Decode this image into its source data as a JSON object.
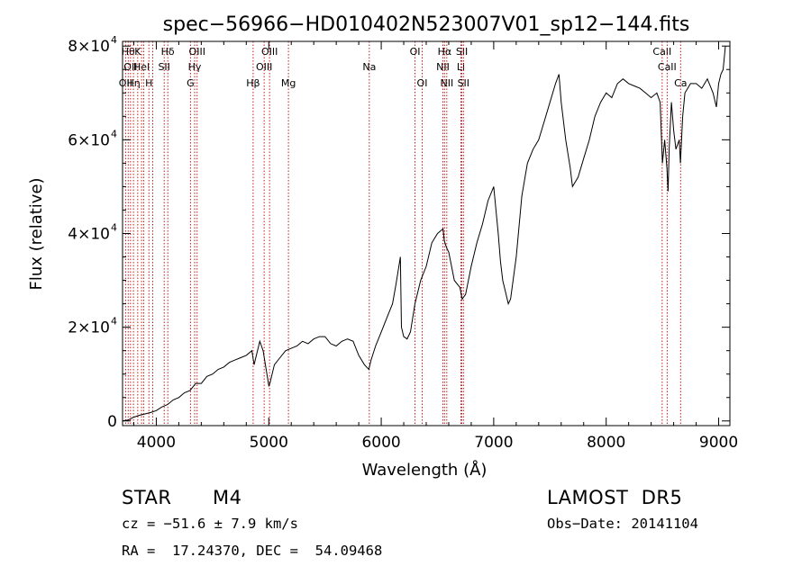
{
  "chart_data": {
    "type": "line",
    "title": "spec−56966−HD010402N523007V01_sp12−144.fits",
    "xlabel": "Wavelength (Å)",
    "ylabel": "Flux (relative)",
    "xlim": [
      3700,
      9100
    ],
    "ylim": [
      -1000,
      81000
    ],
    "xticks": [
      4000,
      5000,
      6000,
      7000,
      8000,
      9000
    ],
    "xtick_labels": [
      "4000",
      "5000",
      "6000",
      "7000",
      "8000",
      "9000"
    ],
    "yticks": [
      {
        "value": 0,
        "mantissa": "0",
        "exponent": ""
      },
      {
        "value": 20000,
        "mantissa": "2×10",
        "exponent": "4"
      },
      {
        "value": 40000,
        "mantissa": "4×10",
        "exponent": "4"
      },
      {
        "value": 60000,
        "mantissa": "6×10",
        "exponent": "4"
      },
      {
        "value": 80000,
        "mantissa": "8×10",
        "exponent": "4"
      }
    ],
    "grid": false,
    "series": [
      {
        "x": [
          3700,
          3750,
          3800,
          3850,
          3900,
          3950,
          4000,
          4050,
          4100,
          4150,
          4200,
          4250,
          4300,
          4350,
          4400,
          4450,
          4500,
          4550,
          4600,
          4650,
          4700,
          4750,
          4800,
          4850,
          4870,
          4890,
          4920,
          4950,
          5000,
          5010,
          5050,
          5100,
          5150,
          5200,
          5250,
          5300,
          5350,
          5400,
          5450,
          5500,
          5550,
          5600,
          5650,
          5700,
          5750,
          5800,
          5850,
          5890,
          5910,
          5950,
          6000,
          6050,
          6100,
          6130,
          6150,
          6170,
          6180,
          6200,
          6230,
          6260,
          6280,
          6300,
          6350,
          6400,
          6450,
          6500,
          6550,
          6560,
          6580,
          6600,
          6650,
          6700,
          6720,
          6750,
          6800,
          6850,
          6900,
          6950,
          7000,
          7020,
          7040,
          7060,
          7080,
          7100,
          7130,
          7150,
          7200,
          7250,
          7300,
          7350,
          7400,
          7450,
          7500,
          7550,
          7580,
          7600,
          7640,
          7680,
          7700,
          7750,
          7800,
          7850,
          7900,
          7950,
          8000,
          8050,
          8100,
          8150,
          8200,
          8250,
          8300,
          8350,
          8400,
          8450,
          8480,
          8500,
          8520,
          8540,
          8550,
          8560,
          8580,
          8600,
          8620,
          8650,
          8660,
          8680,
          8700,
          8750,
          8800,
          8850,
          8900,
          8950,
          8980,
          9000,
          9020,
          9040,
          9060
        ],
        "y": [
          0,
          200,
          800,
          1200,
          1500,
          1800,
          2200,
          3000,
          3500,
          4500,
          5000,
          6000,
          6500,
          8000,
          8000,
          9500,
          10000,
          11000,
          11500,
          12500,
          13000,
          13500,
          14000,
          15000,
          12000,
          14000,
          17000,
          15000,
          7500,
          8000,
          12000,
          13500,
          15000,
          15500,
          16000,
          17000,
          16500,
          17500,
          18000,
          18000,
          16500,
          16000,
          17000,
          17500,
          17000,
          14000,
          12000,
          11000,
          13000,
          16000,
          19000,
          22000,
          25000,
          29000,
          32000,
          35000,
          20000,
          18000,
          17500,
          19000,
          22000,
          25000,
          30000,
          33000,
          38000,
          40000,
          41000,
          38500,
          37000,
          36000,
          30000,
          28500,
          26000,
          27000,
          33000,
          38000,
          42000,
          47000,
          50000,
          45000,
          40000,
          34000,
          30000,
          28000,
          25000,
          26000,
          35000,
          48000,
          55000,
          58000,
          60000,
          64000,
          68000,
          72000,
          74000,
          68000,
          60000,
          54000,
          50000,
          52000,
          56000,
          60000,
          65000,
          68000,
          70000,
          69000,
          72000,
          73000,
          72000,
          71500,
          71000,
          70000,
          69000,
          70000,
          68000,
          55000,
          60000,
          54000,
          49000,
          58000,
          68000,
          62000,
          58000,
          60000,
          55000,
          65000,
          70000,
          72000,
          72000,
          71000,
          73000,
          70000,
          67000,
          72000,
          74000,
          75000,
          80000
        ]
      }
    ],
    "line_markers": [
      {
        "x": 3727,
        "label": "OII",
        "row": 2
      },
      {
        "x": 3750,
        "label": "Hθ",
        "row": 0
      },
      {
        "x": 3771,
        "label": "OII",
        "row": 1
      },
      {
        "x": 3797,
        "label": "Hη",
        "row": 2
      },
      {
        "x": 3835,
        "label": "K",
        "row": 0
      },
      {
        "x": 3869,
        "label": "HeI",
        "row": 1
      },
      {
        "x": 3889,
        "label": "",
        "row": 0
      },
      {
        "x": 3934,
        "label": "H",
        "row": 2
      },
      {
        "x": 3968,
        "label": "",
        "row": 0
      },
      {
        "x": 4070,
        "label": "SII",
        "row": 1
      },
      {
        "x": 4102,
        "label": "Hδ",
        "row": 0
      },
      {
        "x": 4304,
        "label": "G",
        "row": 2
      },
      {
        "x": 4341,
        "label": "Hγ",
        "row": 1
      },
      {
        "x": 4363,
        "label": "OIII",
        "row": 0
      },
      {
        "x": 4861,
        "label": "Hβ",
        "row": 2
      },
      {
        "x": 4959,
        "label": "OIII",
        "row": 1
      },
      {
        "x": 5007,
        "label": "OIII",
        "row": 0
      },
      {
        "x": 5175,
        "label": "Mg",
        "row": 2
      },
      {
        "x": 5894,
        "label": "Na",
        "row": 1
      },
      {
        "x": 6300,
        "label": "OI",
        "row": 0
      },
      {
        "x": 6364,
        "label": "OI",
        "row": 2
      },
      {
        "x": 6548,
        "label": "NII",
        "row": 1
      },
      {
        "x": 6563,
        "label": "Hα",
        "row": 0
      },
      {
        "x": 6583,
        "label": "NII",
        "row": 2
      },
      {
        "x": 6708,
        "label": "Li",
        "row": 1
      },
      {
        "x": 6717,
        "label": "SII",
        "row": 0
      },
      {
        "x": 6731,
        "label": "SII",
        "row": 2
      },
      {
        "x": 8498,
        "label": "CaII",
        "row": 0
      },
      {
        "x": 8542,
        "label": "CaII",
        "row": 1
      },
      {
        "x": 8662,
        "label": "Ca",
        "row": 2
      }
    ]
  },
  "info": {
    "object_class": "STAR",
    "subclass": "M4",
    "survey": "LAMOST  DR5",
    "cz": "cz = −51.6 ± 7.9 km/s",
    "obs_date": "Obs−Date: 20141104",
    "coords": "RA =  17.24370, DEC =  54.09468"
  }
}
